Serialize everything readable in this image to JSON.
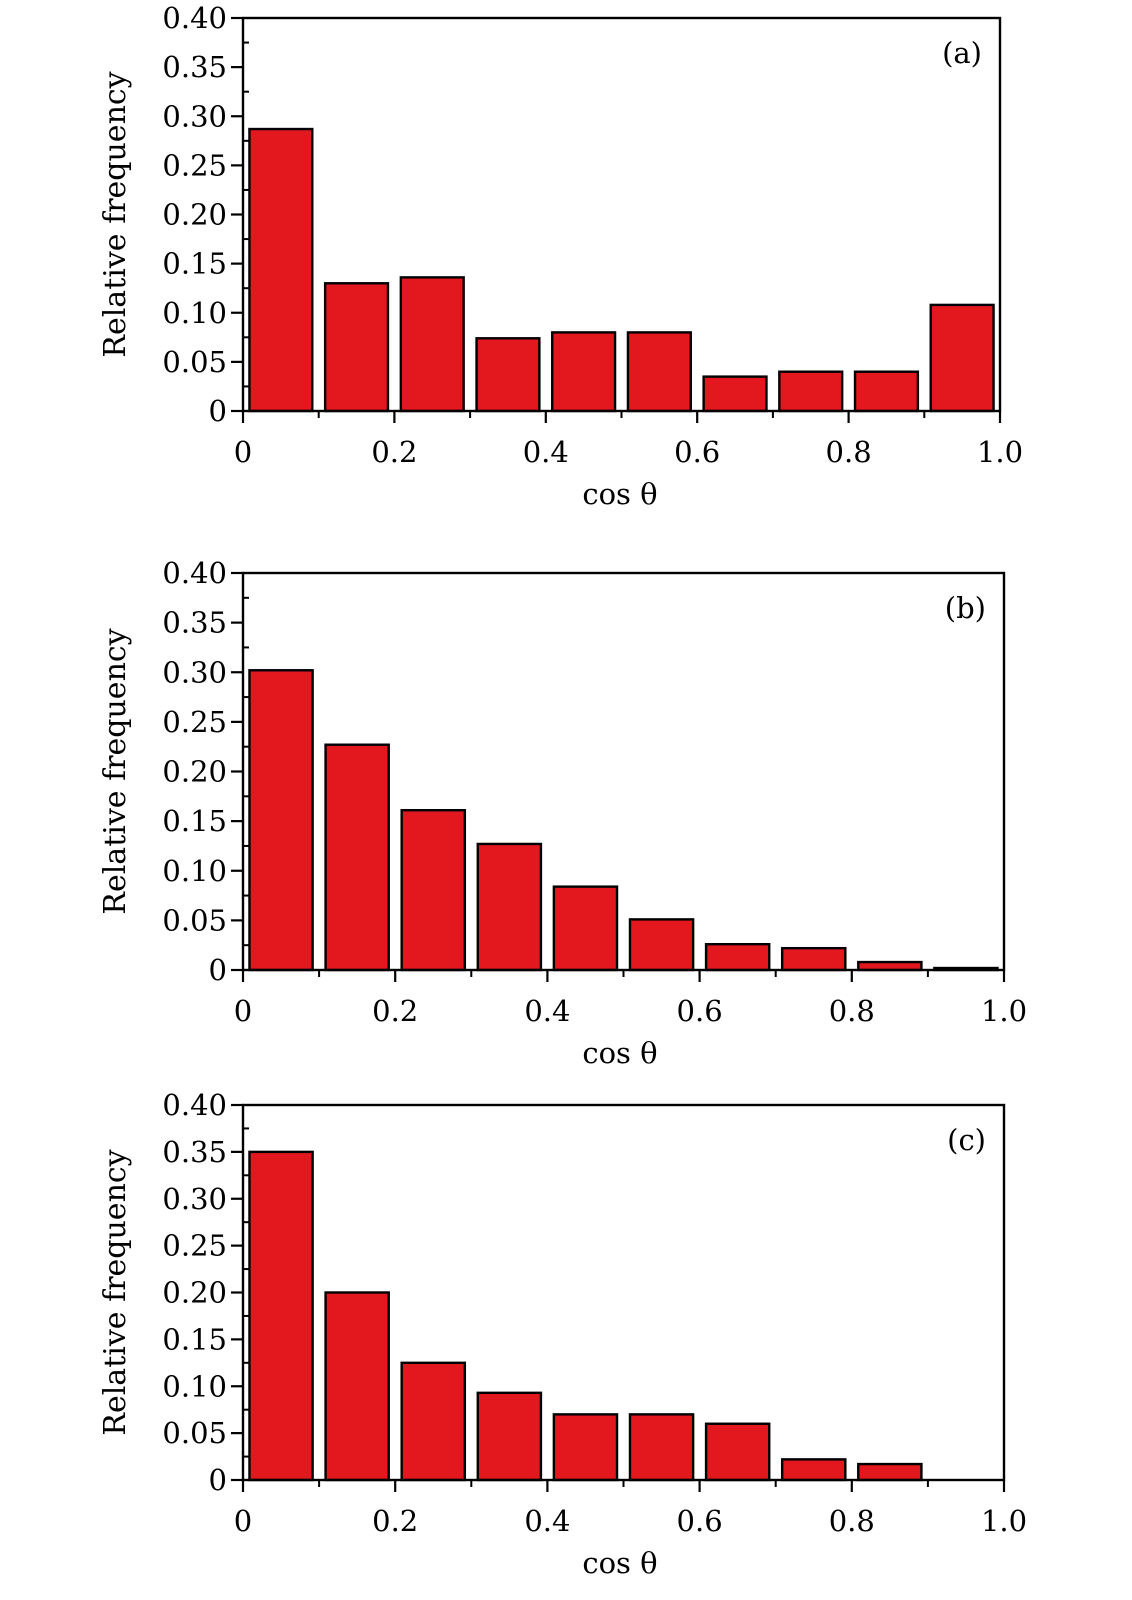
{
  "colors": {
    "bar": "#e3171e",
    "stroke": "#000000",
    "background": "#ffffff"
  },
  "chart_data": [
    {
      "type": "bar",
      "panel_label": "(a)",
      "xlabel": "cos θ",
      "ylabel": "Relative frequency",
      "xlim": [
        0,
        1.0
      ],
      "ylim": [
        0,
        0.4
      ],
      "xticks": [
        "0",
        "0.2",
        "0.4",
        "0.6",
        "0.8",
        "1.0"
      ],
      "yticks": [
        "0",
        "0.05",
        "0.10",
        "0.15",
        "0.20",
        "0.25",
        "0.30",
        "0.35",
        "0.40"
      ],
      "bin_edges": [
        0,
        0.1,
        0.2,
        0.3,
        0.4,
        0.5,
        0.6,
        0.7,
        0.8,
        0.9,
        1.0
      ],
      "values": [
        0.287,
        0.13,
        0.136,
        0.074,
        0.08,
        0.08,
        0.035,
        0.04,
        0.04,
        0.108
      ]
    },
    {
      "type": "bar",
      "panel_label": "(b)",
      "xlabel": "cos θ",
      "ylabel": "Relative frequency",
      "xlim": [
        0,
        1.0
      ],
      "ylim": [
        0,
        0.4
      ],
      "xticks": [
        "0",
        "0.2",
        "0.4",
        "0.6",
        "0.8",
        "1.0"
      ],
      "yticks": [
        "0",
        "0.05",
        "0.10",
        "0.15",
        "0.20",
        "0.25",
        "0.30",
        "0.35",
        "0.40"
      ],
      "bin_edges": [
        0,
        0.1,
        0.2,
        0.3,
        0.4,
        0.5,
        0.6,
        0.7,
        0.8,
        0.9,
        1.0
      ],
      "values": [
        0.302,
        0.227,
        0.161,
        0.127,
        0.084,
        0.051,
        0.026,
        0.022,
        0.008,
        0.002
      ]
    },
    {
      "type": "bar",
      "panel_label": "(c)",
      "xlabel": "cos θ",
      "ylabel": "Relative frequency",
      "xlim": [
        0,
        1.0
      ],
      "ylim": [
        0,
        0.4
      ],
      "xticks": [
        "0",
        "0.2",
        "0.4",
        "0.6",
        "0.8",
        "1.0"
      ],
      "yticks": [
        "0",
        "0.05",
        "0.10",
        "0.15",
        "0.20",
        "0.25",
        "0.30",
        "0.35",
        "0.40"
      ],
      "bin_edges": [
        0,
        0.1,
        0.2,
        0.3,
        0.4,
        0.5,
        0.6,
        0.7,
        0.8,
        0.9,
        1.0
      ],
      "values": [
        0.35,
        0.2,
        0.125,
        0.093,
        0.07,
        0.07,
        0.06,
        0.022,
        0.017,
        0.0
      ]
    }
  ]
}
